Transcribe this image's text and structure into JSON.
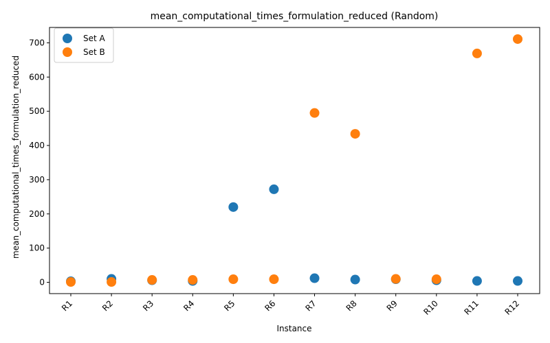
{
  "chart_data": {
    "type": "scatter",
    "title": "mean_computational_times_formulation_reduced (Random)",
    "xlabel": "Instance",
    "ylabel": "mean_computational_times_formulation_reduced",
    "categories": [
      "R1",
      "R2",
      "R3",
      "R4",
      "R5",
      "R6",
      "R7",
      "R8",
      "R9",
      "R10",
      "R11",
      "R12"
    ],
    "ylim": [
      -33,
      745
    ],
    "yticks": [
      0,
      100,
      200,
      300,
      400,
      500,
      600,
      700
    ],
    "grid": false,
    "legend_position": "top-left",
    "series": [
      {
        "name": "Set A",
        "color": "#1f77b4",
        "values": [
          3,
          10,
          6,
          4,
          220,
          272,
          12,
          8,
          9,
          6,
          4,
          4
        ]
      },
      {
        "name": "Set B",
        "color": "#ff7f0e",
        "values": [
          1,
          1,
          7,
          7,
          9,
          9,
          495,
          434,
          10,
          9,
          669,
          711
        ]
      }
    ]
  }
}
